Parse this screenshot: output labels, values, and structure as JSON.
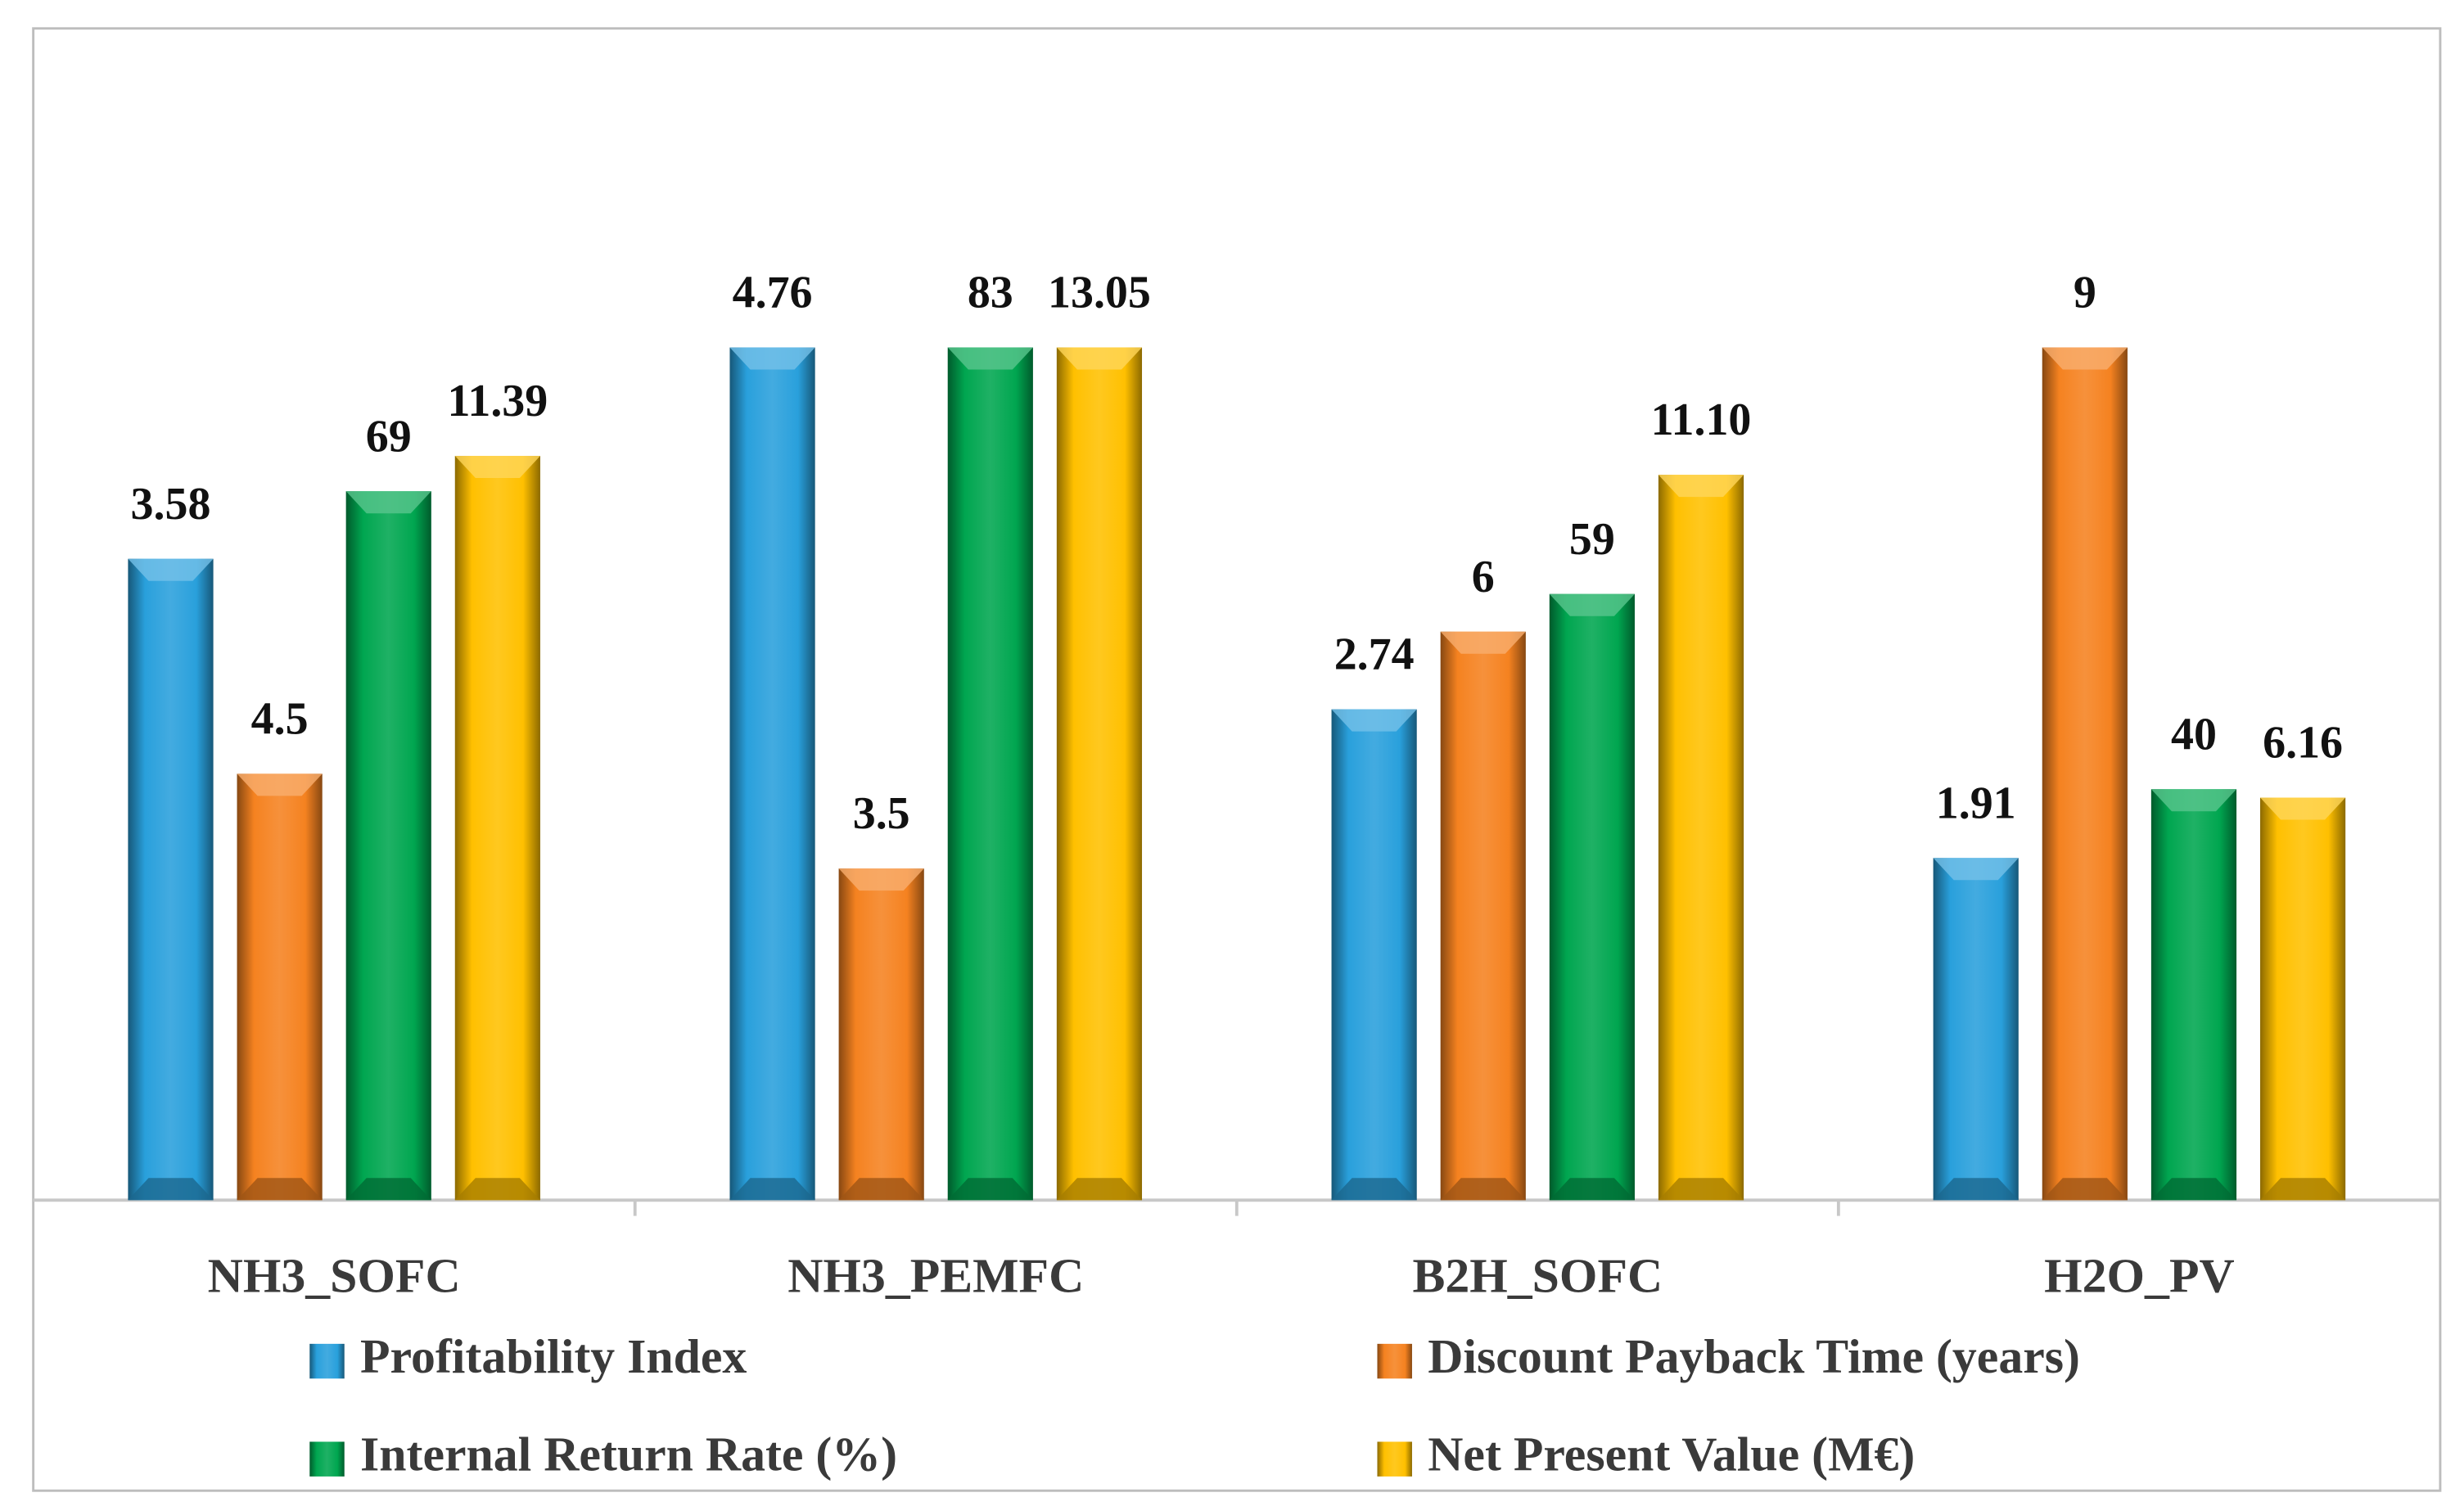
{
  "chart_data": {
    "type": "bar",
    "categories": [
      "NH3_SOFC",
      "NH3_PEMFC",
      "B2H_SOFC",
      "H2O_PV"
    ],
    "series": [
      {
        "name": "Profitability Index",
        "color": "#29a0dc",
        "values": [
          3.58,
          4.76,
          2.74,
          1.91
        ],
        "value_labels": [
          "3.58",
          "4.76",
          "2.74",
          "1.91"
        ]
      },
      {
        "name": "Discount Payback Time (years)",
        "color": "#f58220",
        "values": [
          4.5,
          3.5,
          6,
          9
        ],
        "value_labels": [
          "4.5",
          "3.5",
          "6",
          "9"
        ]
      },
      {
        "name": "Internal Return Rate (%)",
        "color": "#00a650",
        "values": [
          69,
          83,
          59,
          40
        ],
        "value_labels": [
          "69",
          "83",
          "59",
          "40"
        ]
      },
      {
        "name": "Net Present Value (M€)",
        "color": "#ffc000",
        "values": [
          11.39,
          13.05,
          11.1,
          6.16
        ],
        "value_labels": [
          "11.39",
          "13.05",
          "11.10",
          "6.16"
        ]
      }
    ]
  }
}
